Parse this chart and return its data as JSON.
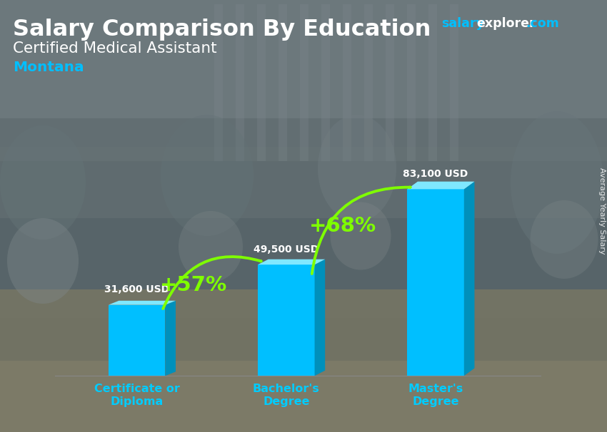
{
  "title_line1": "Salary Comparison By Education",
  "subtitle": "Certified Medical Assistant",
  "location": "Montana",
  "ylabel": "Average Yearly Salary",
  "categories": [
    "Certificate or\nDiploma",
    "Bachelor's\nDegree",
    "Master's\nDegree"
  ],
  "values": [
    31600,
    49500,
    83100
  ],
  "value_labels": [
    "31,600 USD",
    "49,500 USD",
    "83,100 USD"
  ],
  "pct_labels": [
    "+57%",
    "+68%"
  ],
  "bar_color_main": "#00BFFF",
  "bar_color_light": "#7FE8FF",
  "bar_color_dark": "#0090BB",
  "arrow_color": "#7FFF00",
  "title_color": "#FFFFFF",
  "subtitle_color": "#FFFFFF",
  "location_color": "#00BFFF",
  "value_label_color": "#FFFFFF",
  "category_color": "#00CCFF",
  "ylim_max": 100000,
  "site_salary_color": "#00BFFF",
  "site_explorer_color": "#FFFFFF",
  "site_com_color": "#00BFFF",
  "bg_colors": [
    "#7a8a8a",
    "#9aacac",
    "#b0bebe",
    "#8a9898",
    "#6a7878",
    "#505858"
  ],
  "bg_bottom_color": "#c0b090"
}
